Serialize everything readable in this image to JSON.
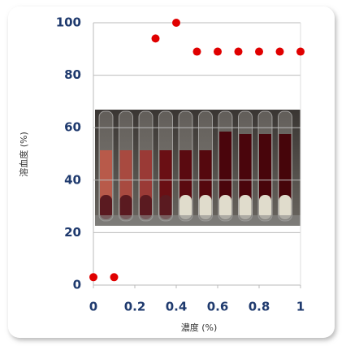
{
  "chart_data": {
    "type": "scatter",
    "x_label": "濃度 (%)",
    "y_label": "溶血度 (%)",
    "series": [
      {
        "color": "#e00000",
        "x": [
          0,
          0.1,
          0.3,
          0.4,
          0.5,
          0.6,
          0.7,
          0.8,
          0.9,
          1
        ],
        "values": [
          3,
          3,
          94,
          100,
          89,
          89,
          89,
          89,
          89,
          89
        ]
      }
    ],
    "xlim": [
      0,
      1
    ],
    "xticks": [
      0,
      0.2,
      0.4,
      0.6,
      0.8,
      1
    ],
    "ylim": [
      0,
      100
    ],
    "yticks": [
      0,
      20,
      40,
      60,
      80,
      100
    ],
    "grid": true
  }
}
